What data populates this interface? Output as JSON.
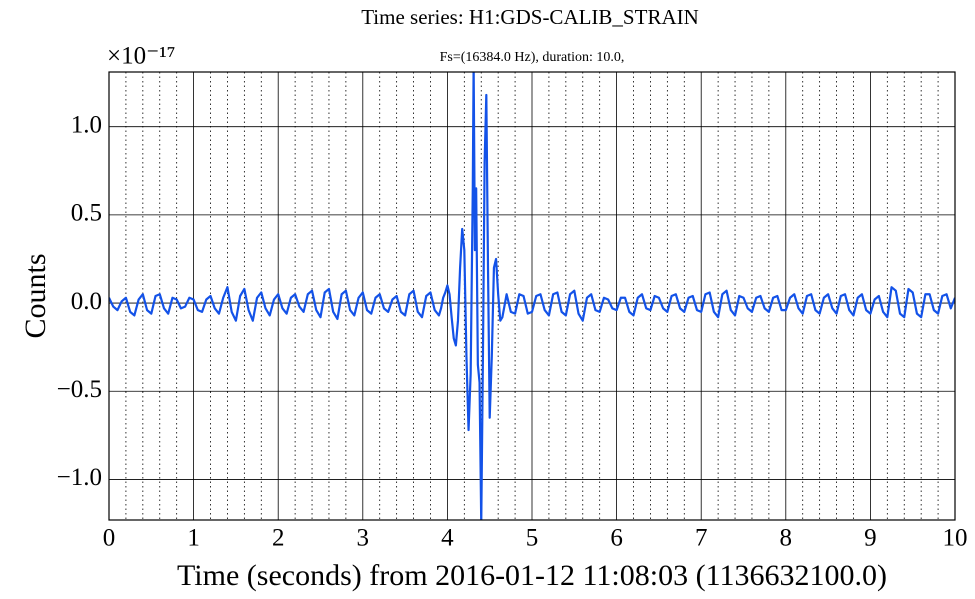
{
  "chart_data": {
    "type": "line",
    "title": "Time series: H1:GDS-CALIB_STRAIN",
    "subtitle": "Fs=(16384.0 Hz), duration: 10.0,",
    "y_offset_label": "×10⁻¹⁷",
    "xlabel": "Time (seconds) from 2016-01-12 11:08:03 (1136632100.0)",
    "ylabel": "Counts",
    "xlim": [
      0,
      10
    ],
    "ylim": [
      -1.23,
      1.31
    ],
    "xticks": [
      0,
      1,
      2,
      3,
      4,
      5,
      6,
      7,
      8,
      9,
      10
    ],
    "xminorticks": [
      0.2,
      0.4,
      0.6,
      0.8,
      1.2,
      1.4,
      1.6,
      1.8,
      2.2,
      2.4,
      2.6,
      2.8,
      3.2,
      3.4,
      3.6,
      3.8,
      4.2,
      4.4,
      4.6,
      4.8,
      5.2,
      5.4,
      5.6,
      5.8,
      6.2,
      6.4,
      6.6,
      6.8,
      7.2,
      7.4,
      7.6,
      7.8,
      8.2,
      8.4,
      8.6,
      8.8,
      9.2,
      9.4,
      9.6,
      9.8
    ],
    "yticks": [
      {
        "value": -1,
        "label": "−1.0"
      },
      {
        "value": -0.5,
        "label": "−0.5"
      },
      {
        "value": 0,
        "label": "0.0"
      },
      {
        "value": 0.5,
        "label": "0.5"
      },
      {
        "value": 1,
        "label": "1.0"
      }
    ],
    "grid": true,
    "x": [
      0,
      0.05,
      0.1,
      0.15,
      0.2,
      0.25,
      0.3,
      0.35,
      0.4,
      0.45,
      0.5,
      0.55,
      0.6,
      0.65,
      0.7,
      0.75,
      0.8,
      0.85,
      0.9,
      0.95,
      1,
      1.05,
      1.1,
      1.15,
      1.2,
      1.25,
      1.3,
      1.35,
      1.4,
      1.45,
      1.5,
      1.55,
      1.6,
      1.65,
      1.7,
      1.75,
      1.8,
      1.85,
      1.9,
      1.95,
      2,
      2.05,
      2.1,
      2.15,
      2.2,
      2.25,
      2.3,
      2.35,
      2.4,
      2.45,
      2.5,
      2.55,
      2.6,
      2.65,
      2.7,
      2.75,
      2.8,
      2.85,
      2.9,
      2.95,
      3,
      3.05,
      3.1,
      3.15,
      3.2,
      3.25,
      3.3,
      3.35,
      3.4,
      3.45,
      3.5,
      3.55,
      3.6,
      3.65,
      3.7,
      3.75,
      3.8,
      3.85,
      3.9,
      3.925,
      3.95,
      3.975,
      4,
      4.025,
      4.05,
      4.075,
      4.1,
      4.125,
      4.15,
      4.175,
      4.2,
      4.225,
      4.25,
      4.275,
      4.3,
      4.31,
      4.325,
      4.34,
      4.36,
      4.38,
      4.4,
      4.42,
      4.44,
      4.46,
      4.48,
      4.5,
      4.525,
      4.55,
      4.575,
      4.6,
      4.625,
      4.65,
      4.7,
      4.75,
      4.8,
      4.85,
      4.9,
      4.95,
      5,
      5.05,
      5.1,
      5.15,
      5.2,
      5.25,
      5.3,
      5.35,
      5.4,
      5.45,
      5.5,
      5.55,
      5.6,
      5.65,
      5.7,
      5.75,
      5.8,
      5.85,
      5.9,
      5.95,
      6,
      6.05,
      6.1,
      6.15,
      6.2,
      6.25,
      6.3,
      6.35,
      6.4,
      6.45,
      6.5,
      6.55,
      6.6,
      6.65,
      6.7,
      6.75,
      6.8,
      6.85,
      6.9,
      6.95,
      7,
      7.05,
      7.1,
      7.15,
      7.2,
      7.25,
      7.3,
      7.35,
      7.4,
      7.45,
      7.5,
      7.55,
      7.6,
      7.65,
      7.7,
      7.75,
      7.8,
      7.85,
      7.9,
      7.95,
      8,
      8.05,
      8.1,
      8.15,
      8.2,
      8.25,
      8.3,
      8.35,
      8.4,
      8.45,
      8.5,
      8.55,
      8.6,
      8.65,
      8.7,
      8.75,
      8.8,
      8.85,
      8.9,
      8.95,
      9,
      9.05,
      9.1,
      9.15,
      9.2,
      9.25,
      9.3,
      9.35,
      9.4,
      9.45,
      9.5,
      9.55,
      9.6,
      9.65,
      9.7,
      9.75,
      9.8,
      9.85,
      9.9,
      9.95,
      10
    ],
    "series": [
      {
        "color": "#1352e8",
        "values": [
          0.03,
          -0.02,
          -0.04,
          0.01,
          0.03,
          -0.05,
          -0.07,
          0.02,
          0.05,
          -0.04,
          -0.06,
          0.04,
          0.05,
          -0.03,
          -0.06,
          0.03,
          0.02,
          -0.03,
          -0.02,
          0.03,
          0.02,
          -0.04,
          -0.05,
          0.02,
          0.04,
          -0.03,
          -0.06,
          0.03,
          0.09,
          -0.05,
          -0.1,
          0.04,
          0.08,
          -0.04,
          -0.1,
          0.03,
          0.06,
          -0.03,
          -0.07,
          0.02,
          0.05,
          -0.03,
          -0.06,
          0.03,
          0.05,
          -0.02,
          -0.05,
          0.05,
          0.07,
          -0.04,
          -0.08,
          0.06,
          0.08,
          -0.05,
          -0.09,
          0.05,
          0.07,
          -0.04,
          -0.07,
          0.03,
          0.06,
          -0.04,
          -0.06,
          0.03,
          0.05,
          -0.03,
          -0.05,
          0.02,
          0.04,
          -0.05,
          -0.07,
          0.05,
          0.07,
          -0.05,
          -0.08,
          0.04,
          0.06,
          -0.04,
          -0.07,
          -0.03,
          0.03,
          0.06,
          0.1,
          0.05,
          -0.08,
          -0.2,
          -0.24,
          -0.1,
          0.2,
          0.42,
          0.3,
          -0.3,
          -0.72,
          -0.4,
          0.65,
          1.35,
          0.3,
          0.65,
          -0.35,
          -0.45,
          -1.25,
          -0.3,
          0.8,
          1.18,
          0.2,
          -0.65,
          -0.3,
          0.2,
          0.25,
          0.05,
          -0.1,
          -0.08,
          0.05,
          -0.05,
          -0.06,
          0.05,
          0.04,
          -0.06,
          -0.05,
          0.04,
          0.05,
          -0.04,
          -0.07,
          0.05,
          0.06,
          -0.05,
          -0.07,
          0.05,
          0.07,
          -0.06,
          -0.1,
          0.03,
          0.05,
          -0.04,
          -0.05,
          0.03,
          0.02,
          -0.03,
          -0.04,
          0.03,
          0.03,
          -0.05,
          -0.07,
          0.03,
          0.05,
          -0.03,
          -0.04,
          0.04,
          0.03,
          -0.03,
          -0.05,
          0.04,
          0.05,
          -0.03,
          -0.05,
          0.03,
          0.04,
          -0.04,
          -0.05,
          0.05,
          0.06,
          -0.05,
          -0.08,
          0.05,
          0.07,
          -0.04,
          -0.07,
          0.04,
          0.03,
          -0.03,
          -0.05,
          0.03,
          0.04,
          -0.03,
          -0.05,
          0.03,
          0.04,
          -0.04,
          -0.04,
          0.03,
          0.05,
          -0.03,
          -0.06,
          0.04,
          0.05,
          -0.04,
          -0.06,
          0.03,
          0.05,
          -0.03,
          -0.06,
          0.04,
          0.05,
          -0.04,
          -0.07,
          0.03,
          0.05,
          -0.04,
          -0.06,
          0.02,
          0.04,
          -0.05,
          -0.08,
          0.09,
          0.07,
          -0.06,
          -0.08,
          0.08,
          0.06,
          -0.06,
          -0.08,
          0.05,
          0.05,
          -0.04,
          -0.06,
          0.04,
          0.05,
          -0.03,
          0.03
        ]
      }
    ]
  }
}
